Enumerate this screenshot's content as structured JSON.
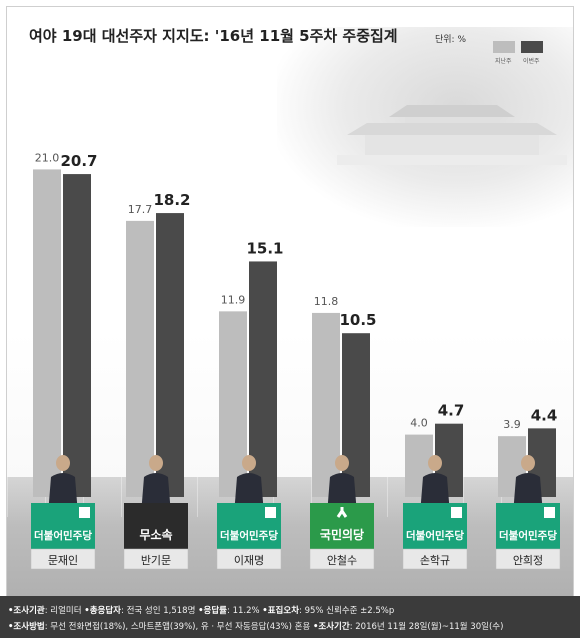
{
  "header": {
    "title": "여야 19대 대선주자 지지도: '16년 11월 5주차 주중집계",
    "unit": "단위: %"
  },
  "colors": {
    "prev": "#bdbdbd",
    "curr": "#4a4a4a",
    "party_democratic": "#1aa37a",
    "party_independent": "#2b2b2b",
    "party_peoples": "#2b9a4a",
    "name_plate": "#e8e8e8"
  },
  "chart_data": {
    "type": "bar",
    "title": "여야 19대 대선주자 지지도: '16년 11월 5주차 주중집계",
    "ylabel": "",
    "xlabel": "",
    "ylim": [
      0,
      25
    ],
    "grid": false,
    "legend": "top-right",
    "categories": [
      "문재인",
      "반기문",
      "이재명",
      "안철수",
      "손학규",
      "안희정"
    ],
    "series": [
      {
        "name": "지난주",
        "values": [
          21.0,
          17.7,
          11.9,
          11.8,
          4.0,
          3.9
        ]
      },
      {
        "name": "이번주",
        "values": [
          20.7,
          18.2,
          15.1,
          10.5,
          4.7,
          4.4
        ]
      }
    ],
    "prev_labels": [
      "21.0",
      "17.7",
      "11.9",
      "11.8",
      "4.0",
      "3.9"
    ],
    "curr_labels": [
      "20.7",
      "18.2",
      "15.1",
      "10.5",
      "4.7",
      "4.4"
    ],
    "parties": [
      "더불어민주당",
      "무소속",
      "더불어민주당",
      "국민의당",
      "더불어민주당",
      "더불어민주당"
    ],
    "party_types": [
      "democratic",
      "independent",
      "democratic",
      "peoples",
      "democratic",
      "democratic"
    ]
  },
  "notes": {
    "line1": [
      {
        "k": "•조사기관",
        "v": ": 리얼미터"
      },
      {
        "k": "•총응답자",
        "v": ": 전국 성인 1,518명"
      },
      {
        "k": "•응답률",
        "v": ": 11.2%"
      },
      {
        "k": "•표집오차",
        "v": ": 95% 신뢰수준 ±2.5%p"
      }
    ],
    "line2": [
      {
        "k": "•조사방법",
        "v": ": 무선 전화면접(18%), 스마트폰앱(39%), 유 · 무선 자동응답(43%) 혼용"
      },
      {
        "k": "•조사기간",
        "v": ": 2016년 11월 28일(월)~11월 30일(수)"
      }
    ]
  }
}
